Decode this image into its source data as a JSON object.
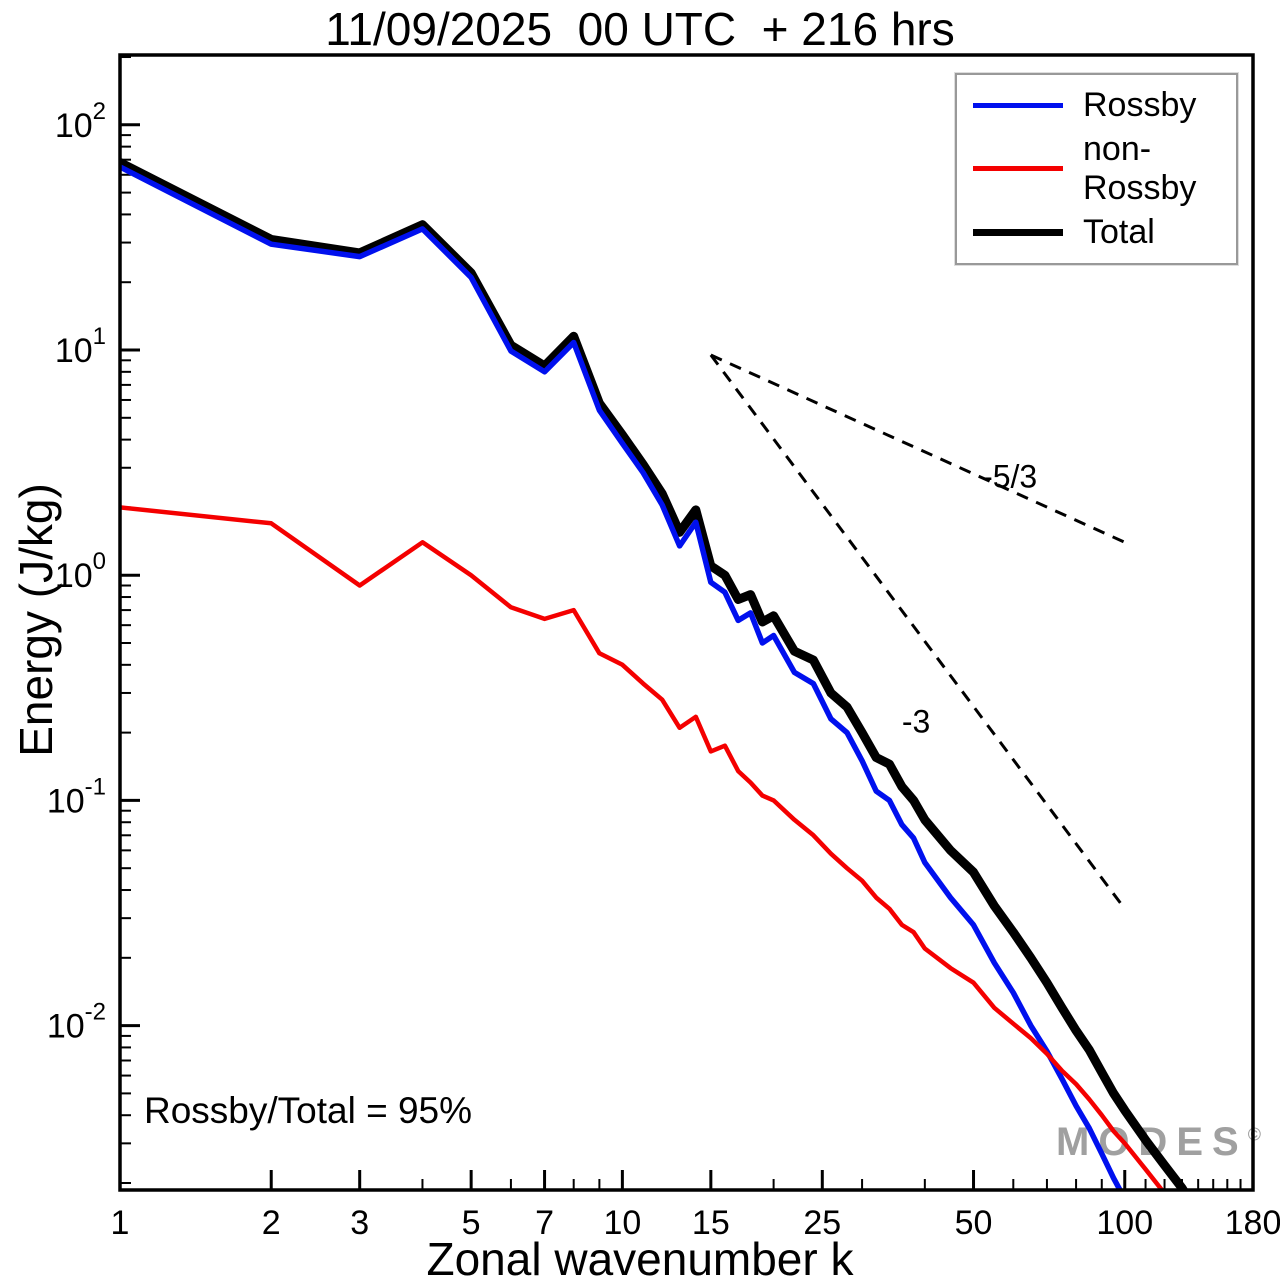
{
  "annotation": "Rossby/Total = 95%",
  "watermark": {
    "text": "MODES",
    "symbol": "©"
  },
  "legend": {
    "items": [
      {
        "label": "Rossby",
        "color": "#0010ee",
        "thickness": 5
      },
      {
        "label": "non-Rossby",
        "color": "#f40000",
        "thickness": 5
      },
      {
        "label": "Total",
        "color": "#000000",
        "thickness": 7
      }
    ]
  },
  "chart_data": {
    "type": "line",
    "title": "11/09/2025  00 UTC  + 216 hrs",
    "xlabel": "Zonal wavenumber k",
    "ylabel": "Energy (J/kg)",
    "x_scale": "log",
    "y_scale": "log",
    "xlim": [
      1,
      180
    ],
    "ylim_log": [
      -2.73,
      2.31
    ],
    "x_ticks": [
      1,
      2,
      3,
      5,
      7,
      10,
      15,
      25,
      50,
      100,
      180
    ],
    "y_tick_exponents": [
      2,
      1,
      0,
      -1,
      -2
    ],
    "grid": false,
    "legend_position": "top-right",
    "series": [
      {
        "name": "Rossby",
        "color": "#0010ee",
        "width": 5.5,
        "x": [
          1,
          2,
          3,
          4,
          5,
          6,
          7,
          8,
          9,
          10,
          11,
          12,
          13,
          14,
          15,
          16,
          17,
          18,
          19,
          20,
          22,
          24,
          26,
          28,
          30,
          32,
          34,
          36,
          38,
          40,
          45,
          50,
          55,
          60,
          65,
          70,
          75,
          80,
          85,
          90,
          95,
          100,
          110
        ],
        "y": [
          65,
          29.5,
          26,
          34.5,
          21,
          9.9,
          8.0,
          10.8,
          5.4,
          3.85,
          2.85,
          2.05,
          1.35,
          1.72,
          0.93,
          0.84,
          0.63,
          0.68,
          0.5,
          0.54,
          0.37,
          0.33,
          0.23,
          0.2,
          0.15,
          0.11,
          0.1,
          0.078,
          0.068,
          0.053,
          0.037,
          0.028,
          0.019,
          0.014,
          0.01,
          0.0077,
          0.0058,
          0.0044,
          0.0035,
          0.0027,
          0.0021,
          0.0017,
          0.0012
        ]
      },
      {
        "name": "non-Rossby",
        "color": "#f40000",
        "width": 4.5,
        "x": [
          1,
          2,
          3,
          4,
          5,
          6,
          7,
          8,
          9,
          10,
          11,
          12,
          13,
          14,
          15,
          16,
          17,
          18,
          19,
          20,
          22,
          24,
          26,
          28,
          30,
          32,
          34,
          36,
          38,
          40,
          45,
          50,
          55,
          60,
          65,
          70,
          75,
          80,
          85,
          90,
          95,
          100,
          110,
          120
        ],
        "y": [
          2.0,
          1.7,
          0.9,
          1.4,
          1.0,
          0.72,
          0.64,
          0.7,
          0.45,
          0.4,
          0.33,
          0.28,
          0.21,
          0.235,
          0.165,
          0.175,
          0.135,
          0.12,
          0.105,
          0.1,
          0.082,
          0.07,
          0.058,
          0.05,
          0.044,
          0.037,
          0.033,
          0.028,
          0.026,
          0.022,
          0.018,
          0.0155,
          0.012,
          0.0102,
          0.0088,
          0.0075,
          0.0063,
          0.0055,
          0.0047,
          0.004,
          0.0034,
          0.003,
          0.0023,
          0.0018
        ]
      },
      {
        "name": "Total",
        "color": "#000000",
        "width": 9,
        "x": [
          1,
          2,
          3,
          4,
          5,
          6,
          7,
          8,
          9,
          10,
          11,
          12,
          13,
          14,
          15,
          16,
          17,
          18,
          19,
          20,
          22,
          24,
          26,
          28,
          30,
          32,
          34,
          36,
          38,
          40,
          45,
          50,
          55,
          60,
          65,
          70,
          75,
          80,
          85,
          90,
          95,
          100,
          110,
          120,
          130,
          140,
          150
        ],
        "y": [
          68,
          31,
          27,
          36,
          22,
          10.5,
          8.5,
          11.5,
          5.8,
          4.2,
          3.1,
          2.3,
          1.55,
          1.95,
          1.1,
          1.0,
          0.78,
          0.82,
          0.62,
          0.66,
          0.46,
          0.42,
          0.3,
          0.26,
          0.2,
          0.155,
          0.145,
          0.115,
          0.1,
          0.082,
          0.06,
          0.048,
          0.034,
          0.026,
          0.02,
          0.0155,
          0.012,
          0.0095,
          0.0078,
          0.0062,
          0.005,
          0.0042,
          0.0031,
          0.0024,
          0.0019,
          0.00145,
          0.0011
        ]
      }
    ],
    "reference_lines": [
      {
        "label": "-5/3",
        "x": [
          15,
          100
        ],
        "y": [
          9.5,
          1.4
        ],
        "label_pos": {
          "x": 52,
          "y": 2.45
        }
      },
      {
        "label": "-3",
        "x": [
          15,
          100
        ],
        "y": [
          9.5,
          0.033
        ],
        "label_pos": {
          "x": 36,
          "y": 0.2
        }
      }
    ]
  }
}
